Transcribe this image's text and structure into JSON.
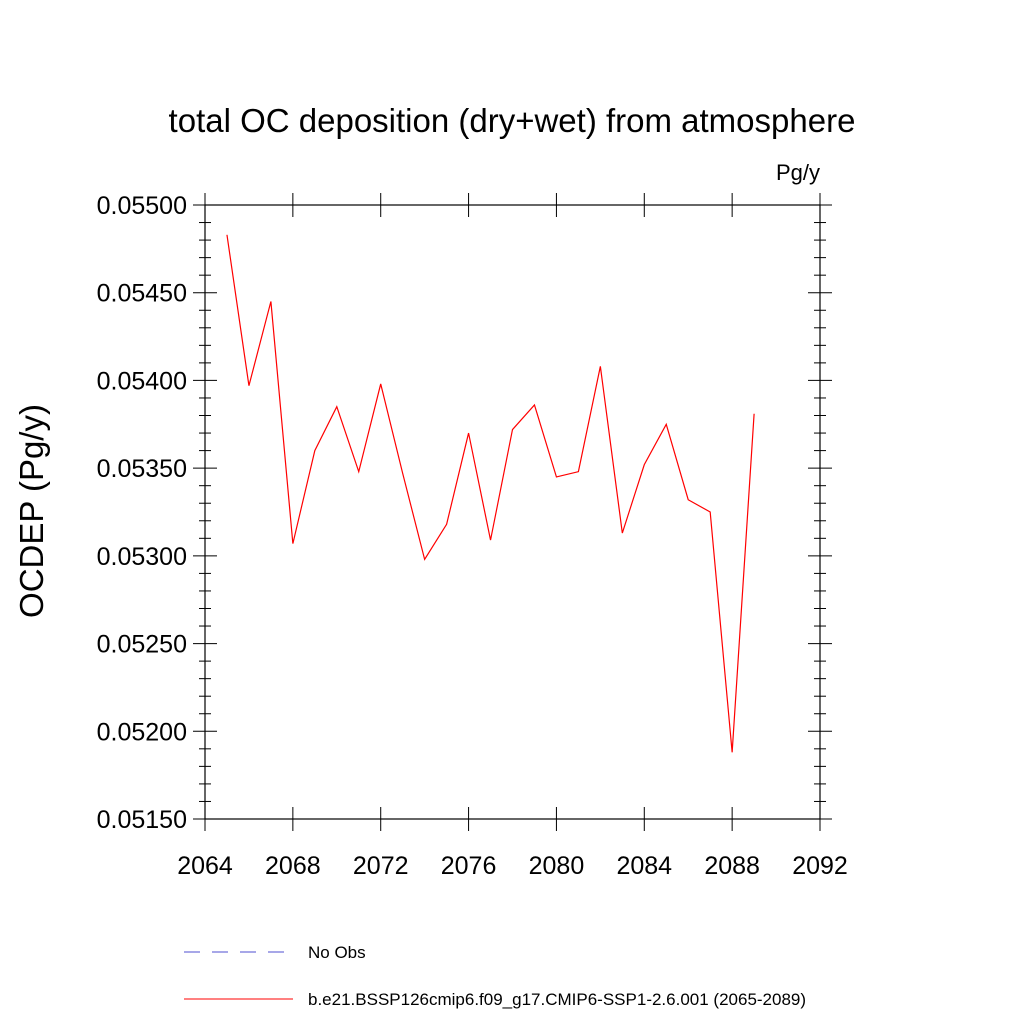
{
  "chart_data": {
    "type": "line",
    "title": "total OC deposition (dry+wet) from atmosphere",
    "units": "Pg/y",
    "ylabel": "OCDEP  (Pg/y)",
    "xlabel": "",
    "xlim": [
      2064,
      2092
    ],
    "ylim": [
      0.0515,
      0.055
    ],
    "x_ticks": [
      2064,
      2068,
      2072,
      2076,
      2080,
      2084,
      2088,
      2092
    ],
    "x_tick_labels": [
      "2064",
      "2068",
      "2072",
      "2076",
      "2080",
      "2084",
      "2088",
      "2092"
    ],
    "y_ticks": [
      0.0515,
      0.052,
      0.0525,
      0.053,
      0.0535,
      0.054,
      0.0545,
      0.055
    ],
    "y_tick_labels": [
      "0.05150",
      "0.05200",
      "0.05250",
      "0.05300",
      "0.05350",
      "0.05400",
      "0.05450",
      "0.05500"
    ],
    "grid": false,
    "legend_position": "bottom",
    "series": [
      {
        "name": "b.e21.BSSP126cmip6.f09_g17.CMIP6-SSP1-2.6.001 (2065-2089)",
        "color": "#ff0000",
        "style": "solid",
        "x": [
          2065,
          2066,
          2067,
          2068,
          2069,
          2070,
          2071,
          2072,
          2073,
          2074,
          2075,
          2076,
          2077,
          2078,
          2079,
          2080,
          2081,
          2082,
          2083,
          2084,
          2085,
          2086,
          2087,
          2088,
          2089
        ],
        "y": [
          0.05483,
          0.05397,
          0.05445,
          0.05307,
          0.0536,
          0.05385,
          0.05348,
          0.05398,
          0.05347,
          0.05298,
          0.05318,
          0.0537,
          0.05309,
          0.05372,
          0.05386,
          0.05345,
          0.05348,
          0.05408,
          0.05313,
          0.05352,
          0.05375,
          0.05332,
          0.05325,
          0.05188,
          0.05381
        ]
      },
      {
        "name": "No Obs",
        "color": "#4f4fd0",
        "style": "dashed",
        "x": [],
        "y": []
      }
    ]
  }
}
